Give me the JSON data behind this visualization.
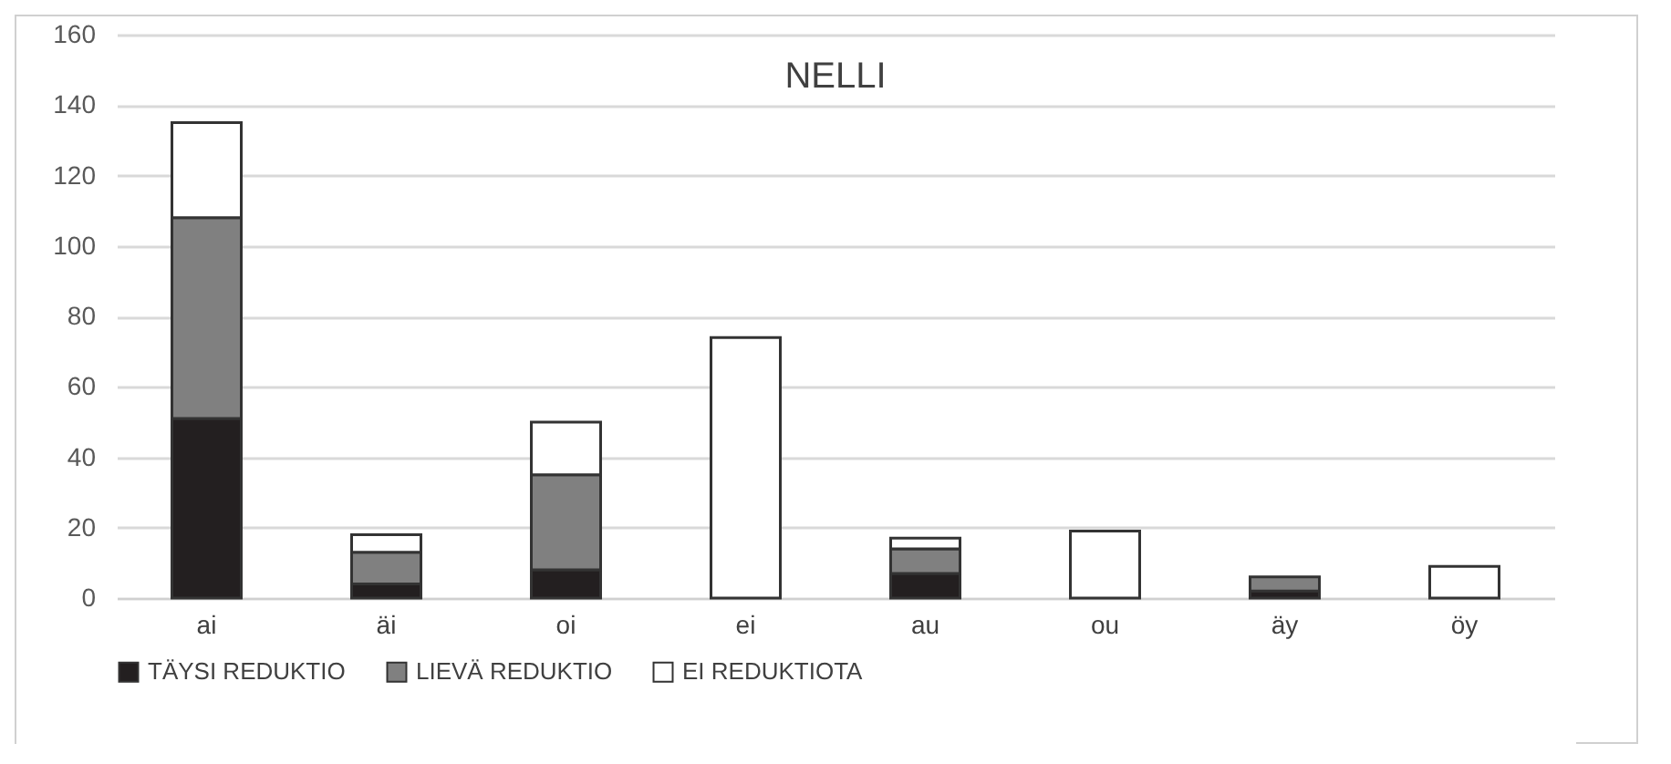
{
  "chart_data": {
    "type": "bar",
    "title": "NELLI",
    "stacked": true,
    "categories": [
      "ai",
      "äi",
      "oi",
      "ei",
      "au",
      "ou",
      "äy",
      "öy"
    ],
    "series": [
      {
        "name": "TÄYSI REDUKTIO",
        "color": "#231f20",
        "values": [
          51,
          4,
          8,
          0,
          7,
          0,
          2,
          0
        ]
      },
      {
        "name": "LIEVÄ REDUKTIO",
        "color": "#808080",
        "values": [
          57,
          9,
          27,
          0,
          7,
          0,
          4,
          0
        ]
      },
      {
        "name": "EI REDUKTIOTA",
        "color": "#ffffff",
        "values": [
          27,
          5,
          15,
          74,
          3,
          19,
          0,
          9
        ]
      }
    ],
    "ylim": [
      0,
      160
    ],
    "yticks": [
      0,
      20,
      40,
      60,
      80,
      100,
      120,
      140,
      160
    ],
    "grid": "y",
    "legend": "bottom"
  }
}
